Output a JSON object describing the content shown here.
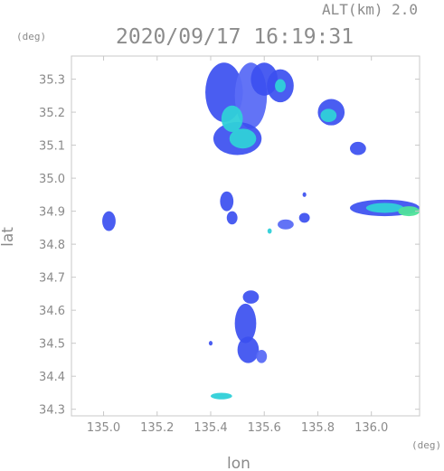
{
  "header": {
    "altitude_label": "ALT(km)  2.0",
    "timestamp": "2020/09/17  16:19:31"
  },
  "colors": {
    "frame": "#c8c8c8",
    "text": "#8a8a8a",
    "echo_weak": "#3b4ff0",
    "echo_light": "#5a6cf5",
    "echo_medium": "#2fd0d8",
    "echo_strong": "#4fe39a"
  },
  "chart_data": {
    "type": "heatmap",
    "title": "2020/09/17  16:19:31",
    "subtitle": "ALT(km)  2.0",
    "xlabel": "lon",
    "ylabel": "lat",
    "x_unit": "(deg)",
    "y_unit": "(deg)",
    "xlim": [
      134.88,
      136.18
    ],
    "ylim": [
      34.28,
      35.37
    ],
    "x_ticks": [
      "135.0",
      "135.2",
      "135.4",
      "135.6",
      "135.8",
      "136.0"
    ],
    "x_tick_values": [
      135.0,
      135.2,
      135.4,
      135.6,
      135.8,
      136.0
    ],
    "y_ticks": [
      "34.3",
      "34.4",
      "34.5",
      "34.6",
      "34.7",
      "34.8",
      "34.9",
      "35.0",
      "35.1",
      "35.2",
      "35.3"
    ],
    "y_tick_values": [
      34.3,
      34.4,
      34.5,
      34.6,
      34.7,
      34.8,
      34.9,
      35.0,
      35.1,
      35.2,
      35.3
    ],
    "grid": false,
    "echoes": [
      {
        "lon": 135.45,
        "lat": 35.26,
        "rlon": 0.07,
        "rlat": 0.09,
        "level": "weak"
      },
      {
        "lon": 135.55,
        "lat": 35.25,
        "rlon": 0.06,
        "rlat": 0.1,
        "level": "light"
      },
      {
        "lon": 135.6,
        "lat": 35.3,
        "rlon": 0.05,
        "rlat": 0.05,
        "level": "weak"
      },
      {
        "lon": 135.5,
        "lat": 35.12,
        "rlon": 0.09,
        "rlat": 0.05,
        "level": "weak"
      },
      {
        "lon": 135.52,
        "lat": 35.12,
        "rlon": 0.05,
        "rlat": 0.03,
        "level": "medium"
      },
      {
        "lon": 135.48,
        "lat": 35.18,
        "rlon": 0.04,
        "rlat": 0.04,
        "level": "medium"
      },
      {
        "lon": 135.66,
        "lat": 35.28,
        "rlon": 0.05,
        "rlat": 0.05,
        "level": "weak"
      },
      {
        "lon": 135.66,
        "lat": 35.28,
        "rlon": 0.02,
        "rlat": 0.02,
        "level": "medium"
      },
      {
        "lon": 135.85,
        "lat": 35.2,
        "rlon": 0.05,
        "rlat": 0.04,
        "level": "weak"
      },
      {
        "lon": 135.84,
        "lat": 35.19,
        "rlon": 0.03,
        "rlat": 0.02,
        "level": "medium"
      },
      {
        "lon": 135.95,
        "lat": 35.09,
        "rlon": 0.03,
        "rlat": 0.02,
        "level": "weak"
      },
      {
        "lon": 136.05,
        "lat": 34.91,
        "rlon": 0.13,
        "rlat": 0.025,
        "level": "weak"
      },
      {
        "lon": 136.05,
        "lat": 34.91,
        "rlon": 0.07,
        "rlat": 0.015,
        "level": "medium"
      },
      {
        "lon": 136.14,
        "lat": 34.9,
        "rlon": 0.04,
        "rlat": 0.015,
        "level": "strong"
      },
      {
        "lon": 135.02,
        "lat": 34.87,
        "rlon": 0.025,
        "rlat": 0.03,
        "level": "weak"
      },
      {
        "lon": 135.46,
        "lat": 34.93,
        "rlon": 0.025,
        "rlat": 0.03,
        "level": "weak"
      },
      {
        "lon": 135.48,
        "lat": 34.88,
        "rlon": 0.02,
        "rlat": 0.02,
        "level": "weak"
      },
      {
        "lon": 135.68,
        "lat": 34.86,
        "rlon": 0.03,
        "rlat": 0.015,
        "level": "light"
      },
      {
        "lon": 135.62,
        "lat": 34.84,
        "rlon": 0.008,
        "rlat": 0.008,
        "level": "medium"
      },
      {
        "lon": 135.75,
        "lat": 34.88,
        "rlon": 0.02,
        "rlat": 0.015,
        "level": "weak"
      },
      {
        "lon": 135.53,
        "lat": 34.56,
        "rlon": 0.04,
        "rlat": 0.06,
        "level": "weak"
      },
      {
        "lon": 135.54,
        "lat": 34.48,
        "rlon": 0.04,
        "rlat": 0.04,
        "level": "weak"
      },
      {
        "lon": 135.59,
        "lat": 34.46,
        "rlon": 0.02,
        "rlat": 0.02,
        "level": "light"
      },
      {
        "lon": 135.55,
        "lat": 34.64,
        "rlon": 0.03,
        "rlat": 0.02,
        "level": "weak"
      },
      {
        "lon": 135.44,
        "lat": 34.34,
        "rlon": 0.04,
        "rlat": 0.01,
        "level": "medium"
      },
      {
        "lon": 135.4,
        "lat": 34.5,
        "rlon": 0.007,
        "rlat": 0.007,
        "level": "weak"
      },
      {
        "lon": 135.75,
        "lat": 34.95,
        "rlon": 0.007,
        "rlat": 0.007,
        "level": "weak"
      }
    ]
  }
}
